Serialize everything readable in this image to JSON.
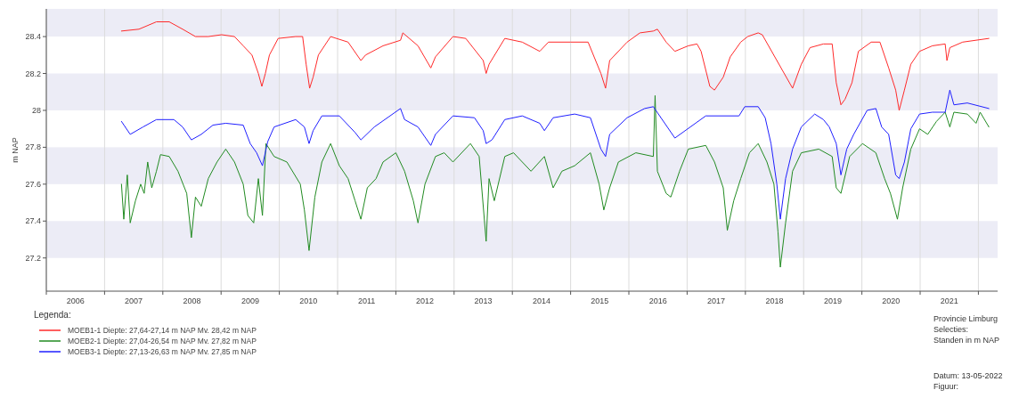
{
  "chart_data": {
    "type": "line",
    "ylabel": "m NAP",
    "legend_title": "Legenda:",
    "legend": "bottom",
    "grid": true,
    "xlim": [
      2006,
      2022.33
    ],
    "ylim": [
      27.02,
      28.55
    ],
    "xticks": [
      {
        "value": 2006,
        "label": null
      },
      {
        "value": 2007,
        "label": null
      },
      {
        "value": 2008,
        "label": null
      },
      {
        "value": 2009,
        "label": null
      },
      {
        "value": 2010,
        "label": null
      },
      {
        "value": 2011,
        "label": null
      },
      {
        "value": 2012,
        "label": null
      },
      {
        "value": 2013,
        "label": null
      },
      {
        "value": 2014,
        "label": null
      },
      {
        "value": 2015,
        "label": null
      },
      {
        "value": 2016,
        "label": null
      },
      {
        "value": 2017,
        "label": null
      },
      {
        "value": 2018,
        "label": null
      },
      {
        "value": 2019,
        "label": null
      },
      {
        "value": 2020,
        "label": null
      },
      {
        "value": 2021,
        "label": null
      },
      {
        "value": 2022,
        "label": null
      },
      {
        "value": 2006.5,
        "label": "2006"
      },
      {
        "value": 2007.5,
        "label": "2007"
      },
      {
        "value": 2008.5,
        "label": "2008"
      },
      {
        "value": 2009.5,
        "label": "2009"
      },
      {
        "value": 2010.5,
        "label": "2010"
      },
      {
        "value": 2011.5,
        "label": "2011"
      },
      {
        "value": 2012.5,
        "label": "2012"
      },
      {
        "value": 2013.5,
        "label": "2013"
      },
      {
        "value": 2014.5,
        "label": "2014"
      },
      {
        "value": 2015.5,
        "label": "2015"
      },
      {
        "value": 2016.5,
        "label": "2016"
      },
      {
        "value": 2017.5,
        "label": "2017"
      },
      {
        "value": 2018.5,
        "label": "2018"
      },
      {
        "value": 2019.5,
        "label": "2019"
      },
      {
        "value": 2020.5,
        "label": "2020"
      },
      {
        "value": 2021.5,
        "label": "2021"
      }
    ],
    "yticks": [
      27.2,
      27.4,
      27.6,
      27.8,
      28,
      28.2,
      28.4
    ],
    "annotations": [
      "Provincie Limburg",
      "Selecties:",
      "Standen in m NAP",
      "Datum: 13-05-2022",
      "Figuur:"
    ],
    "series": [
      {
        "name": "MOEB1-1 Diepte: 27,64-27,14 m NAP Mv. 28,42 m NAP",
        "color": "#ff2a2a",
        "x": [
          2007.29,
          2007.59,
          2007.89,
          2008.11,
          2008.34,
          2008.56,
          2008.78,
          2009.01,
          2009.23,
          2009.38,
          2009.53,
          2009.64,
          2009.7,
          2009.76,
          2009.83,
          2009.98,
          2010.28,
          2010.4,
          2010.46,
          2010.52,
          2010.58,
          2010.67,
          2010.88,
          2011.18,
          2011.4,
          2011.48,
          2011.78,
          2012.08,
          2012.12,
          2012.38,
          2012.6,
          2012.68,
          2012.98,
          2013.2,
          2013.5,
          2013.55,
          2013.6,
          2013.87,
          2014.17,
          2014.47,
          2014.62,
          2015.0,
          2015.3,
          2015.52,
          2015.6,
          2015.67,
          2015.97,
          2016.19,
          2016.42,
          2016.49,
          2016.64,
          2016.79,
          2017.02,
          2017.17,
          2017.24,
          2017.39,
          2017.47,
          2017.62,
          2017.74,
          2017.92,
          2018.04,
          2018.22,
          2018.29,
          2018.81,
          2018.96,
          2019.11,
          2019.34,
          2019.49,
          2019.56,
          2019.64,
          2019.71,
          2019.83,
          2019.94,
          2020.16,
          2020.31,
          2020.46,
          2020.58,
          2020.64,
          2020.73,
          2020.84,
          2020.99,
          2021.21,
          2021.43,
          2021.46,
          2021.51,
          2021.73,
          2022.18
        ],
        "values": [
          28.43,
          28.44,
          28.48,
          28.48,
          28.44,
          28.4,
          28.4,
          28.41,
          28.4,
          28.35,
          28.3,
          28.2,
          28.13,
          28.2,
          28.3,
          28.39,
          28.4,
          28.4,
          28.25,
          28.12,
          28.18,
          28.3,
          28.4,
          28.37,
          28.27,
          28.3,
          28.35,
          28.38,
          28.42,
          28.35,
          28.23,
          28.29,
          28.4,
          28.39,
          28.27,
          28.2,
          28.25,
          28.39,
          28.37,
          28.32,
          28.37,
          28.37,
          28.37,
          28.2,
          28.12,
          28.27,
          28.37,
          28.42,
          28.43,
          28.44,
          28.37,
          28.32,
          28.35,
          28.36,
          28.32,
          28.13,
          28.11,
          28.18,
          28.29,
          28.37,
          28.4,
          28.42,
          28.41,
          28.12,
          28.25,
          28.34,
          28.36,
          28.36,
          28.15,
          28.03,
          28.06,
          28.15,
          28.32,
          28.37,
          28.37,
          28.23,
          28.11,
          28.0,
          28.11,
          28.25,
          28.32,
          28.35,
          28.36,
          28.27,
          28.34,
          28.37,
          28.39
        ]
      },
      {
        "name": "MOEB2-1 Diepte: 27,04-26,54 m NAP Mv. 27,82 m NAP",
        "color": "#228b22",
        "x": [
          2007.29,
          2007.33,
          2007.39,
          2007.44,
          2007.53,
          2007.62,
          2007.68,
          2007.74,
          2007.81,
          2007.89,
          2007.96,
          2008.11,
          2008.26,
          2008.41,
          2008.49,
          2008.56,
          2008.66,
          2008.78,
          2008.93,
          2009.08,
          2009.23,
          2009.38,
          2009.46,
          2009.56,
          2009.64,
          2009.71,
          2009.77,
          2009.91,
          2010.13,
          2010.36,
          2010.43,
          2010.51,
          2010.61,
          2010.73,
          2010.88,
          2011.03,
          2011.18,
          2011.3,
          2011.4,
          2011.51,
          2011.66,
          2011.78,
          2012.0,
          2012.15,
          2012.3,
          2012.38,
          2012.5,
          2012.68,
          2012.83,
          2012.98,
          2013.28,
          2013.43,
          2013.55,
          2013.6,
          2013.69,
          2013.87,
          2014.02,
          2014.32,
          2014.55,
          2014.7,
          2014.85,
          2015.07,
          2015.34,
          2015.49,
          2015.57,
          2015.67,
          2015.82,
          2016.12,
          2016.42,
          2016.45,
          2016.49,
          2016.64,
          2016.72,
          2016.87,
          2017.02,
          2017.32,
          2017.47,
          2017.62,
          2017.69,
          2017.8,
          2017.92,
          2018.07,
          2018.22,
          2018.37,
          2018.49,
          2018.56,
          2018.6,
          2018.69,
          2018.81,
          2018.96,
          2019.26,
          2019.49,
          2019.56,
          2019.64,
          2019.79,
          2020.01,
          2020.24,
          2020.39,
          2020.49,
          2020.61,
          2020.7,
          2020.84,
          2020.99,
          2021.13,
          2021.28,
          2021.43,
          2021.51,
          2021.58,
          2021.81,
          2021.96,
          2022.03,
          2022.18
        ],
        "values": [
          27.6,
          27.41,
          27.65,
          27.39,
          27.51,
          27.6,
          27.55,
          27.72,
          27.58,
          27.67,
          27.76,
          27.75,
          27.67,
          27.55,
          27.31,
          27.53,
          27.48,
          27.63,
          27.72,
          27.79,
          27.72,
          27.6,
          27.43,
          27.39,
          27.63,
          27.43,
          27.82,
          27.75,
          27.72,
          27.6,
          27.46,
          27.24,
          27.53,
          27.72,
          27.82,
          27.7,
          27.63,
          27.51,
          27.41,
          27.58,
          27.63,
          27.72,
          27.77,
          27.67,
          27.51,
          27.39,
          27.6,
          27.75,
          27.77,
          27.72,
          27.82,
          27.75,
          27.29,
          27.63,
          27.51,
          27.75,
          27.77,
          27.67,
          27.75,
          27.58,
          27.67,
          27.7,
          27.77,
          27.6,
          27.46,
          27.58,
          27.72,
          27.77,
          27.75,
          28.08,
          27.67,
          27.55,
          27.53,
          27.67,
          27.79,
          27.81,
          27.72,
          27.58,
          27.35,
          27.51,
          27.63,
          27.77,
          27.82,
          27.72,
          27.6,
          27.34,
          27.15,
          27.39,
          27.67,
          27.77,
          27.79,
          27.75,
          27.58,
          27.55,
          27.75,
          27.82,
          27.77,
          27.63,
          27.55,
          27.41,
          27.58,
          27.79,
          27.9,
          27.87,
          27.94,
          27.99,
          27.91,
          27.99,
          27.98,
          27.93,
          27.99,
          27.91
        ]
      },
      {
        "name": "MOEB3-1 Diepte: 27,13-26,63 m NAP Mv. 27,85 m NAP",
        "color": "#1f1fff",
        "x": [
          2007.29,
          2007.44,
          2007.66,
          2007.89,
          2008.19,
          2008.34,
          2008.49,
          2008.66,
          2008.86,
          2009.08,
          2009.38,
          2009.5,
          2009.61,
          2009.71,
          2009.8,
          2009.91,
          2010.28,
          2010.43,
          2010.51,
          2010.58,
          2010.73,
          2011.03,
          2011.3,
          2011.4,
          2011.63,
          2012.08,
          2012.15,
          2012.38,
          2012.6,
          2012.68,
          2012.98,
          2013.35,
          2013.5,
          2013.55,
          2013.65,
          2013.87,
          2014.17,
          2014.47,
          2014.55,
          2014.7,
          2015.07,
          2015.34,
          2015.52,
          2015.6,
          2015.67,
          2015.97,
          2016.27,
          2016.42,
          2016.79,
          2017.32,
          2017.89,
          2017.99,
          2018.22,
          2018.34,
          2018.44,
          2018.54,
          2018.6,
          2018.69,
          2018.81,
          2018.96,
          2019.19,
          2019.34,
          2019.44,
          2019.56,
          2019.64,
          2019.74,
          2019.86,
          2020.09,
          2020.24,
          2020.34,
          2020.46,
          2020.58,
          2020.64,
          2020.73,
          2020.84,
          2020.99,
          2021.21,
          2021.43,
          2021.51,
          2021.58,
          2021.81,
          2022.18
        ],
        "values": [
          27.94,
          27.87,
          27.91,
          27.95,
          27.95,
          27.91,
          27.84,
          27.87,
          27.92,
          27.93,
          27.92,
          27.82,
          27.77,
          27.7,
          27.83,
          27.91,
          27.95,
          27.91,
          27.82,
          27.89,
          27.97,
          27.97,
          27.88,
          27.84,
          27.91,
          28.01,
          27.95,
          27.91,
          27.81,
          27.87,
          27.97,
          27.96,
          27.89,
          27.82,
          27.84,
          27.95,
          27.97,
          27.93,
          27.89,
          27.96,
          27.98,
          27.96,
          27.79,
          27.75,
          27.87,
          27.96,
          28.01,
          28.02,
          27.85,
          27.97,
          27.97,
          28.02,
          28.02,
          27.96,
          27.82,
          27.6,
          27.41,
          27.63,
          27.79,
          27.91,
          27.98,
          27.95,
          27.91,
          27.82,
          27.65,
          27.79,
          27.87,
          28.0,
          28.01,
          27.91,
          27.87,
          27.65,
          27.63,
          27.72,
          27.9,
          27.98,
          27.99,
          27.99,
          28.11,
          28.03,
          28.04,
          28.01
        ]
      }
    ]
  }
}
